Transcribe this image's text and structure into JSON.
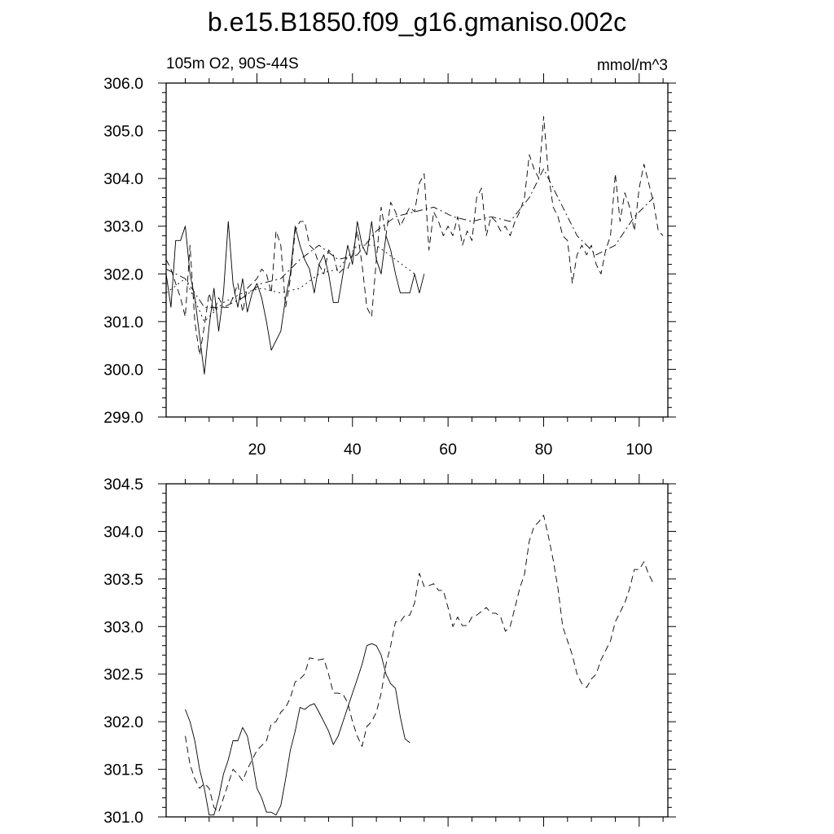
{
  "title": "b.e15.B1850.f09_g16.gmaniso.002c",
  "chart_data": [
    {
      "type": "line",
      "left_label": "105m O2, 90S-44S",
      "right_label": "mmol/m^3",
      "xlim": [
        1,
        106
      ],
      "ylim": [
        299.0,
        306.0
      ],
      "x_ticks": [
        20,
        40,
        60,
        80,
        100
      ],
      "y_ticks": [
        299.0,
        300.0,
        301.0,
        302.0,
        303.0,
        304.0,
        305.0,
        306.0
      ],
      "y_tick_labels": [
        "299.0",
        "300.0",
        "301.0",
        "302.0",
        "303.0",
        "304.0",
        "305.0",
        "306.0"
      ],
      "grid": false,
      "series": [
        {
          "style": "solid",
          "x": [
            1,
            2,
            3,
            4,
            5,
            6,
            7,
            8,
            9,
            10,
            11,
            12,
            13,
            14,
            15,
            16,
            17,
            18,
            19,
            20,
            21,
            22,
            23,
            24,
            25,
            26,
            27,
            28,
            29,
            30,
            31,
            32,
            33,
            34,
            35,
            36,
            37,
            38,
            39,
            40,
            41,
            42,
            43,
            44,
            45,
            46,
            47,
            48,
            49,
            50,
            51,
            52,
            53,
            54,
            55
          ],
          "values": [
            302.0,
            301.3,
            302.7,
            302.7,
            303.0,
            302.0,
            301.5,
            300.7,
            299.9,
            300.9,
            301.7,
            300.8,
            301.6,
            303.1,
            301.8,
            301.3,
            301.9,
            301.2,
            301.6,
            301.8,
            301.5,
            301.0,
            300.4,
            300.6,
            300.8,
            301.5,
            302.0,
            303.0,
            302.6,
            302.3,
            302.1,
            301.6,
            302.2,
            302.4,
            302.0,
            301.4,
            301.4,
            302.0,
            302.6,
            302.2,
            303.1,
            302.6,
            302.4,
            303.1,
            302.3,
            302.0,
            302.8,
            302.5,
            302.0,
            301.6,
            301.6,
            301.6,
            302.0,
            301.6,
            302.0
          ]
        },
        {
          "style": "dashed",
          "x": [
            1,
            2,
            3,
            4,
            5,
            6,
            7,
            8,
            9,
            10,
            11,
            12,
            13,
            14,
            15,
            16,
            17,
            18,
            19,
            20,
            21,
            22,
            23,
            24,
            25,
            26,
            27,
            28,
            29,
            30,
            31,
            32,
            33,
            34,
            35,
            36,
            37,
            38,
            39,
            40,
            41,
            42,
            43,
            44,
            45,
            46,
            47,
            48,
            49,
            50,
            51,
            52,
            53,
            54,
            55,
            56,
            57,
            58,
            59,
            60,
            61,
            62,
            63,
            64,
            65,
            66,
            67,
            68,
            69,
            70,
            71,
            72,
            73,
            74,
            75,
            76,
            77,
            78,
            79,
            80,
            81,
            82,
            83,
            84,
            85,
            86,
            87,
            88,
            89,
            90,
            91,
            92,
            93,
            94,
            95,
            96,
            97,
            98,
            99,
            100,
            101,
            102,
            103,
            104,
            105
          ],
          "values": [
            302.3,
            302.1,
            301.8,
            301.5,
            301.1,
            302.6,
            301.0,
            300.3,
            300.9,
            301.6,
            301.2,
            301.5,
            301.3,
            301.3,
            301.5,
            301.8,
            301.2,
            301.7,
            301.8,
            301.9,
            302.1,
            302.0,
            301.6,
            302.9,
            302.6,
            301.3,
            301.9,
            302.9,
            303.1,
            303.1,
            302.6,
            302.5,
            302.2,
            302.0,
            302.5,
            302.4,
            302.0,
            302.1,
            302.1,
            302.4,
            302.9,
            302.2,
            301.3,
            301.1,
            302.3,
            303.4,
            302.8,
            303.5,
            303.3,
            303.0,
            303.2,
            303.4,
            303.3,
            303.9,
            304.1,
            302.5,
            303.3,
            303.1,
            302.8,
            303.0,
            302.8,
            303.2,
            302.6,
            302.9,
            302.7,
            303.6,
            303.8,
            302.8,
            303.2,
            303.1,
            302.9,
            303.0,
            302.8,
            303.1,
            303.3,
            303.6,
            304.5,
            304.2,
            304.0,
            305.3,
            304.1,
            303.4,
            303.2,
            302.8,
            302.7,
            301.8,
            302.4,
            302.6,
            302.4,
            302.6,
            302.2,
            302.0,
            302.5,
            302.8,
            304.1,
            303.1,
            303.7,
            303.4,
            302.9,
            303.8,
            304.3,
            303.9,
            303.5,
            302.9,
            302.8
          ]
        },
        {
          "style": "dash-dot",
          "x": [
            1,
            5,
            9,
            13,
            17,
            21,
            25,
            29,
            33,
            37,
            41,
            45,
            49,
            53,
            57,
            61,
            65,
            69,
            73,
            77,
            80,
            83,
            87,
            91,
            95,
            99,
            103
          ],
          "values": [
            302.1,
            301.9,
            301.3,
            301.3,
            301.5,
            301.8,
            301.9,
            302.3,
            302.6,
            302.3,
            302.4,
            302.9,
            303.2,
            303.3,
            303.4,
            303.2,
            303.1,
            303.2,
            303.1,
            303.6,
            304.2,
            303.6,
            302.8,
            302.4,
            302.6,
            303.2,
            303.6
          ]
        },
        {
          "style": "dotted",
          "x": [
            1,
            5,
            9,
            13,
            17,
            21,
            25,
            29,
            33,
            37,
            41,
            45,
            49,
            53
          ],
          "values": [
            301.6,
            301.9,
            301.0,
            301.4,
            301.6,
            301.7,
            301.6,
            301.7,
            302.0,
            302.1,
            302.6,
            302.6,
            302.3,
            302.0
          ]
        }
      ]
    },
    {
      "type": "line",
      "xlim": [
        1,
        106
      ],
      "ylim": [
        301.0,
        304.5
      ],
      "x_ticks": [
        20,
        40,
        60,
        80,
        100
      ],
      "y_ticks": [
        301.0,
        301.5,
        302.0,
        302.5,
        303.0,
        303.5,
        304.0,
        304.5
      ],
      "y_tick_labels": [
        "301.0",
        "301.5",
        "302.0",
        "302.5",
        "303.0",
        "303.5",
        "304.0",
        "304.5"
      ],
      "grid": false,
      "series": [
        {
          "style": "solid",
          "x": [
            5,
            6,
            7,
            8,
            9,
            10,
            11,
            12,
            13,
            14,
            15,
            16,
            17,
            18,
            19,
            20,
            21,
            22,
            23,
            24,
            25,
            26,
            27,
            28,
            29,
            30,
            31,
            32,
            33,
            34,
            35,
            36,
            37,
            38,
            39,
            40,
            41,
            42,
            43,
            44,
            45,
            46,
            47,
            48,
            49,
            50,
            51,
            52
          ],
          "values": [
            302.13,
            302.0,
            301.8,
            301.5,
            301.3,
            301.02,
            301.02,
            301.2,
            301.45,
            301.6,
            301.8,
            301.8,
            301.94,
            301.85,
            301.6,
            301.3,
            301.2,
            301.05,
            301.05,
            301.02,
            301.12,
            301.4,
            301.7,
            301.9,
            302.15,
            302.13,
            302.17,
            302.19,
            302.1,
            302.0,
            301.9,
            301.76,
            301.85,
            302.0,
            302.15,
            302.3,
            302.45,
            302.6,
            302.8,
            302.82,
            302.8,
            302.7,
            302.5,
            302.4,
            302.35,
            302.05,
            301.82,
            301.78
          ]
        },
        {
          "style": "dashed",
          "x": [
            5,
            6,
            7,
            8,
            9,
            10,
            11,
            12,
            13,
            14,
            15,
            16,
            17,
            18,
            19,
            20,
            21,
            22,
            23,
            24,
            25,
            26,
            27,
            28,
            29,
            30,
            31,
            32,
            33,
            34,
            35,
            36,
            37,
            38,
            39,
            40,
            41,
            42,
            43,
            44,
            45,
            46,
            47,
            48,
            49,
            50,
            51,
            52,
            53,
            54,
            55,
            56,
            57,
            58,
            59,
            60,
            61,
            62,
            63,
            64,
            65,
            66,
            67,
            68,
            69,
            70,
            71,
            72,
            73,
            74,
            75,
            76,
            77,
            78,
            79,
            80,
            81,
            82,
            83,
            84,
            85,
            86,
            87,
            88,
            89,
            90,
            91,
            92,
            93,
            94,
            95,
            96,
            97,
            98,
            99,
            100,
            101,
            102,
            103
          ],
          "values": [
            301.85,
            301.55,
            301.4,
            301.3,
            301.35,
            301.3,
            301.1,
            301.05,
            301.2,
            301.35,
            301.5,
            301.45,
            301.38,
            301.5,
            301.6,
            301.7,
            301.75,
            301.8,
            301.98,
            302.0,
            302.1,
            302.15,
            302.25,
            302.42,
            302.45,
            302.5,
            302.67,
            302.66,
            302.65,
            302.66,
            302.5,
            302.3,
            302.3,
            302.29,
            302.2,
            302.0,
            301.85,
            301.74,
            301.95,
            302.0,
            302.1,
            302.3,
            302.6,
            302.8,
            303.05,
            303.05,
            303.12,
            303.12,
            303.25,
            303.56,
            303.42,
            303.43,
            303.45,
            303.38,
            303.38,
            303.2,
            303.0,
            303.1,
            303.01,
            303.01,
            303.1,
            303.12,
            303.16,
            303.2,
            303.14,
            303.14,
            303.1,
            302.95,
            303.0,
            303.2,
            303.4,
            303.55,
            303.9,
            304.05,
            304.1,
            304.17,
            303.95,
            303.7,
            303.4,
            303.0,
            302.85,
            302.7,
            302.5,
            302.4,
            302.36,
            302.45,
            302.5,
            302.65,
            302.75,
            302.85,
            303.05,
            303.15,
            303.25,
            303.4,
            303.6,
            303.6,
            303.68,
            303.55,
            303.45
          ]
        }
      ]
    }
  ]
}
